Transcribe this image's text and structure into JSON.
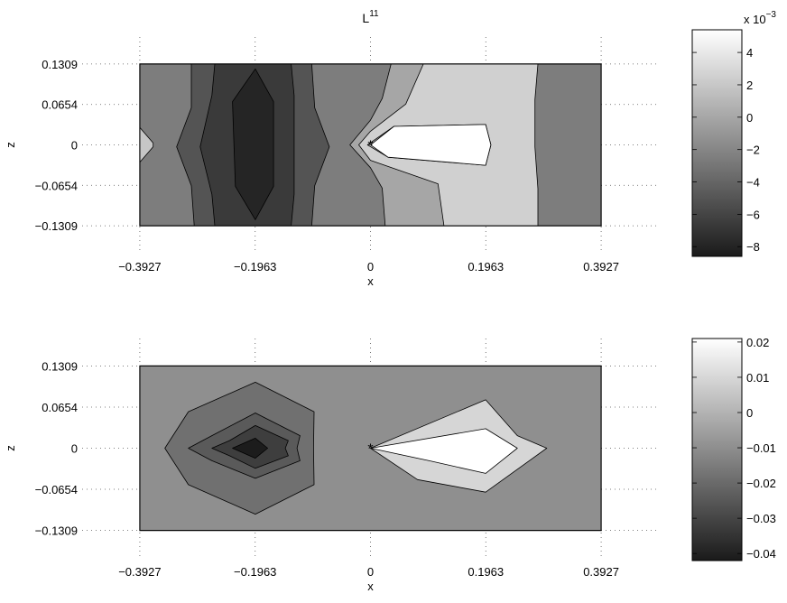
{
  "chart_data": [
    {
      "type": "contour",
      "title": "L",
      "title_superscript": "11",
      "xlabel": "x",
      "ylabel": "z",
      "xlim": [
        -0.4909,
        0.4909
      ],
      "ylim": [
        -0.1745,
        0.1745
      ],
      "xticks": [
        "-0.3927",
        "-0.1963",
        "0",
        "0.1963",
        "0.3927"
      ],
      "xtick_values": [
        -0.3927,
        -0.1963,
        0,
        0.1963,
        0.3927
      ],
      "yticks": [
        "0.1309",
        "0.0654",
        "0",
        "-0.0654",
        "-0.1309"
      ],
      "ytick_values": [
        0.1309,
        0.0654,
        0,
        -0.0654,
        -0.1309
      ],
      "grid": true,
      "data_extent": {
        "x": [
          -0.3927,
          0.3927
        ],
        "z": [
          -0.1309,
          0.1309
        ]
      },
      "marker": {
        "symbol": "*",
        "x": 0,
        "z": 0
      },
      "background_fill": "#7d7d7d",
      "regions": [
        {
          "fill": "#c6c6c6",
          "points": [
            [
              -0.3927,
              0.0
            ],
            [
              -0.3927,
              -0.028
            ],
            [
              -0.37,
              -0.003
            ],
            [
              -0.37,
              0.003
            ],
            [
              -0.3927,
              0.028
            ]
          ]
        },
        {
          "fill": "#545454",
          "points": [
            [
              -0.305,
              0.1309
            ],
            [
              -0.196,
              0.1309
            ],
            [
              -0.1,
              0.1309
            ],
            [
              -0.095,
              0.06
            ],
            [
              -0.07,
              -0.003
            ],
            [
              -0.095,
              -0.066
            ],
            [
              -0.1,
              -0.1309
            ],
            [
              -0.196,
              -0.1309
            ],
            [
              -0.3,
              -0.1309
            ],
            [
              -0.305,
              -0.066
            ],
            [
              -0.33,
              -0.003
            ],
            [
              -0.305,
              0.06
            ]
          ]
        },
        {
          "fill": "#3a3a3a",
          "points": [
            [
              -0.265,
              0.1309
            ],
            [
              -0.196,
              0.1309
            ],
            [
              -0.135,
              0.1309
            ],
            [
              -0.13,
              0.08
            ],
            [
              -0.13,
              -0.003
            ],
            [
              -0.13,
              -0.08
            ],
            [
              -0.135,
              -0.1309
            ],
            [
              -0.196,
              -0.1309
            ],
            [
              -0.265,
              -0.1309
            ],
            [
              -0.27,
              -0.08
            ],
            [
              -0.29,
              -0.003
            ],
            [
              -0.27,
              0.08
            ]
          ]
        },
        {
          "fill": "#252525",
          "points": [
            [
              -0.196,
              0.123
            ],
            [
              -0.165,
              0.07
            ],
            [
              -0.165,
              -0.067
            ],
            [
              -0.196,
              -0.121
            ],
            [
              -0.23,
              -0.067
            ],
            [
              -0.235,
              0.07
            ]
          ]
        },
        {
          "fill": "#a6a6a6",
          "points": [
            [
              -0.035,
              0.0
            ],
            [
              0.0,
              0.04
            ],
            [
              0.02,
              0.075
            ],
            [
              0.035,
              0.1309
            ],
            [
              0.24,
              0.1309
            ],
            [
              0.235,
              0.07
            ],
            [
              0.235,
              -0.003
            ],
            [
              0.235,
              -0.071
            ],
            [
              0.24,
              -0.1309
            ],
            [
              0.025,
              -0.1309
            ],
            [
              0.02,
              -0.07
            ],
            [
              0.0,
              -0.037
            ]
          ]
        },
        {
          "fill": "#d0d0d0",
          "points": [
            [
              -0.02,
              0.0
            ],
            [
              0.0,
              0.022
            ],
            [
              0.06,
              0.066
            ],
            [
              0.09,
              0.1309
            ],
            [
              0.285,
              0.1309
            ],
            [
              0.28,
              0.073
            ],
            [
              0.28,
              -0.003
            ],
            [
              0.285,
              -0.071
            ],
            [
              0.285,
              -0.1309
            ],
            [
              0.125,
              -0.1309
            ],
            [
              0.115,
              -0.063
            ],
            [
              0.0,
              -0.025
            ]
          ]
        },
        {
          "fill": "#e8e8e8",
          "points": [
            [
              -0.005,
              0.0
            ],
            [
              0.04,
              0.03
            ],
            [
              0.196,
              0.033
            ],
            [
              0.205,
              0.0
            ],
            [
              0.196,
              -0.033
            ],
            [
              0.03,
              -0.02
            ]
          ]
        },
        {
          "fill": "#ffffff",
          "points": [
            [
              0.0,
              0.0
            ],
            [
              0.04,
              0.03
            ],
            [
              0.196,
              0.033
            ],
            [
              0.205,
              0.0
            ],
            [
              0.196,
              -0.033
            ],
            [
              0.03,
              -0.02
            ]
          ]
        }
      ],
      "colorbar": {
        "ticks": [
          "4",
          "2",
          "0",
          "-2",
          "-4",
          "-6",
          "-8"
        ],
        "tick_values": [
          4,
          2,
          0,
          -2,
          -4,
          -6,
          -8
        ],
        "range": [
          -8.6,
          5.4
        ],
        "multiplier": "x 10",
        "exponent": "-3",
        "color_low": "#1a1a1a",
        "color_high": "#ffffff"
      }
    },
    {
      "type": "contour",
      "title": "",
      "xlabel": "x",
      "ylabel": "z",
      "xlim": [
        -0.4909,
        0.4909
      ],
      "ylim": [
        -0.1745,
        0.1745
      ],
      "xticks": [
        "-0.3927",
        "-0.1963",
        "0",
        "0.1963",
        "0.3927"
      ],
      "xtick_values": [
        -0.3927,
        -0.1963,
        0,
        0.1963,
        0.3927
      ],
      "yticks": [
        "0.1309",
        "0.0654",
        "0",
        "-0.0654",
        "-0.1309"
      ],
      "ytick_values": [
        0.1309,
        0.0654,
        0,
        -0.0654,
        -0.1309
      ],
      "grid": true,
      "data_extent": {
        "x": [
          -0.3927,
          0.3927
        ],
        "z": [
          -0.1309,
          0.1309
        ]
      },
      "marker": {
        "symbol": "*",
        "x": 0,
        "z": 0
      },
      "background_fill": "#8f8f8f",
      "regions": [
        {
          "fill": "#707070",
          "points": [
            [
              -0.196,
              0.105
            ],
            [
              -0.096,
              0.058
            ],
            [
              -0.097,
              0.0
            ],
            [
              -0.096,
              -0.058
            ],
            [
              -0.196,
              -0.105
            ],
            [
              -0.31,
              -0.058
            ],
            [
              -0.35,
              0.0
            ],
            [
              -0.31,
              0.058
            ]
          ]
        },
        {
          "fill": "#5a5a5a",
          "points": [
            [
              -0.196,
              0.056
            ],
            [
              -0.12,
              0.02
            ],
            [
              -0.125,
              0.0
            ],
            [
              -0.12,
              -0.02
            ],
            [
              -0.196,
              -0.048
            ],
            [
              -0.27,
              -0.02
            ],
            [
              -0.31,
              0.0
            ],
            [
              -0.27,
              0.02
            ]
          ]
        },
        {
          "fill": "#3e3e3e",
          "points": [
            [
              -0.196,
              0.036
            ],
            [
              -0.14,
              0.012
            ],
            [
              -0.145,
              0.0
            ],
            [
              -0.14,
              -0.012
            ],
            [
              -0.196,
              -0.032
            ],
            [
              -0.24,
              -0.012
            ],
            [
              -0.27,
              0.0
            ],
            [
              -0.24,
              0.012
            ]
          ]
        },
        {
          "fill": "#1c1c1c",
          "points": [
            [
              -0.196,
              0.016
            ],
            [
              -0.175,
              0.0
            ],
            [
              -0.196,
              -0.016
            ],
            [
              -0.235,
              0.0
            ]
          ]
        },
        {
          "fill": "#d6d6d6",
          "points": [
            [
              0.0,
              0.0
            ],
            [
              0.196,
              0.077
            ],
            [
              0.25,
              0.02
            ],
            [
              0.3,
              0.0
            ],
            [
              0.196,
              -0.07
            ],
            [
              0.08,
              -0.05
            ]
          ]
        },
        {
          "fill": "#ffffff",
          "points": [
            [
              0.0,
              0.0
            ],
            [
              0.196,
              0.031
            ],
            [
              0.25,
              0.0
            ],
            [
              0.196,
              -0.04
            ],
            [
              0.1,
              -0.02
            ]
          ]
        }
      ],
      "colorbar": {
        "ticks": [
          "0.02",
          "0.01",
          "0",
          "-0.01",
          "-0.02",
          "-0.03",
          "-0.04"
        ],
        "tick_values": [
          0.02,
          0.01,
          0,
          -0.01,
          -0.02,
          -0.03,
          -0.04
        ],
        "range": [
          -0.042,
          0.021
        ],
        "multiplier": "",
        "exponent": "",
        "color_low": "#1a1a1a",
        "color_high": "#ffffff"
      }
    }
  ]
}
